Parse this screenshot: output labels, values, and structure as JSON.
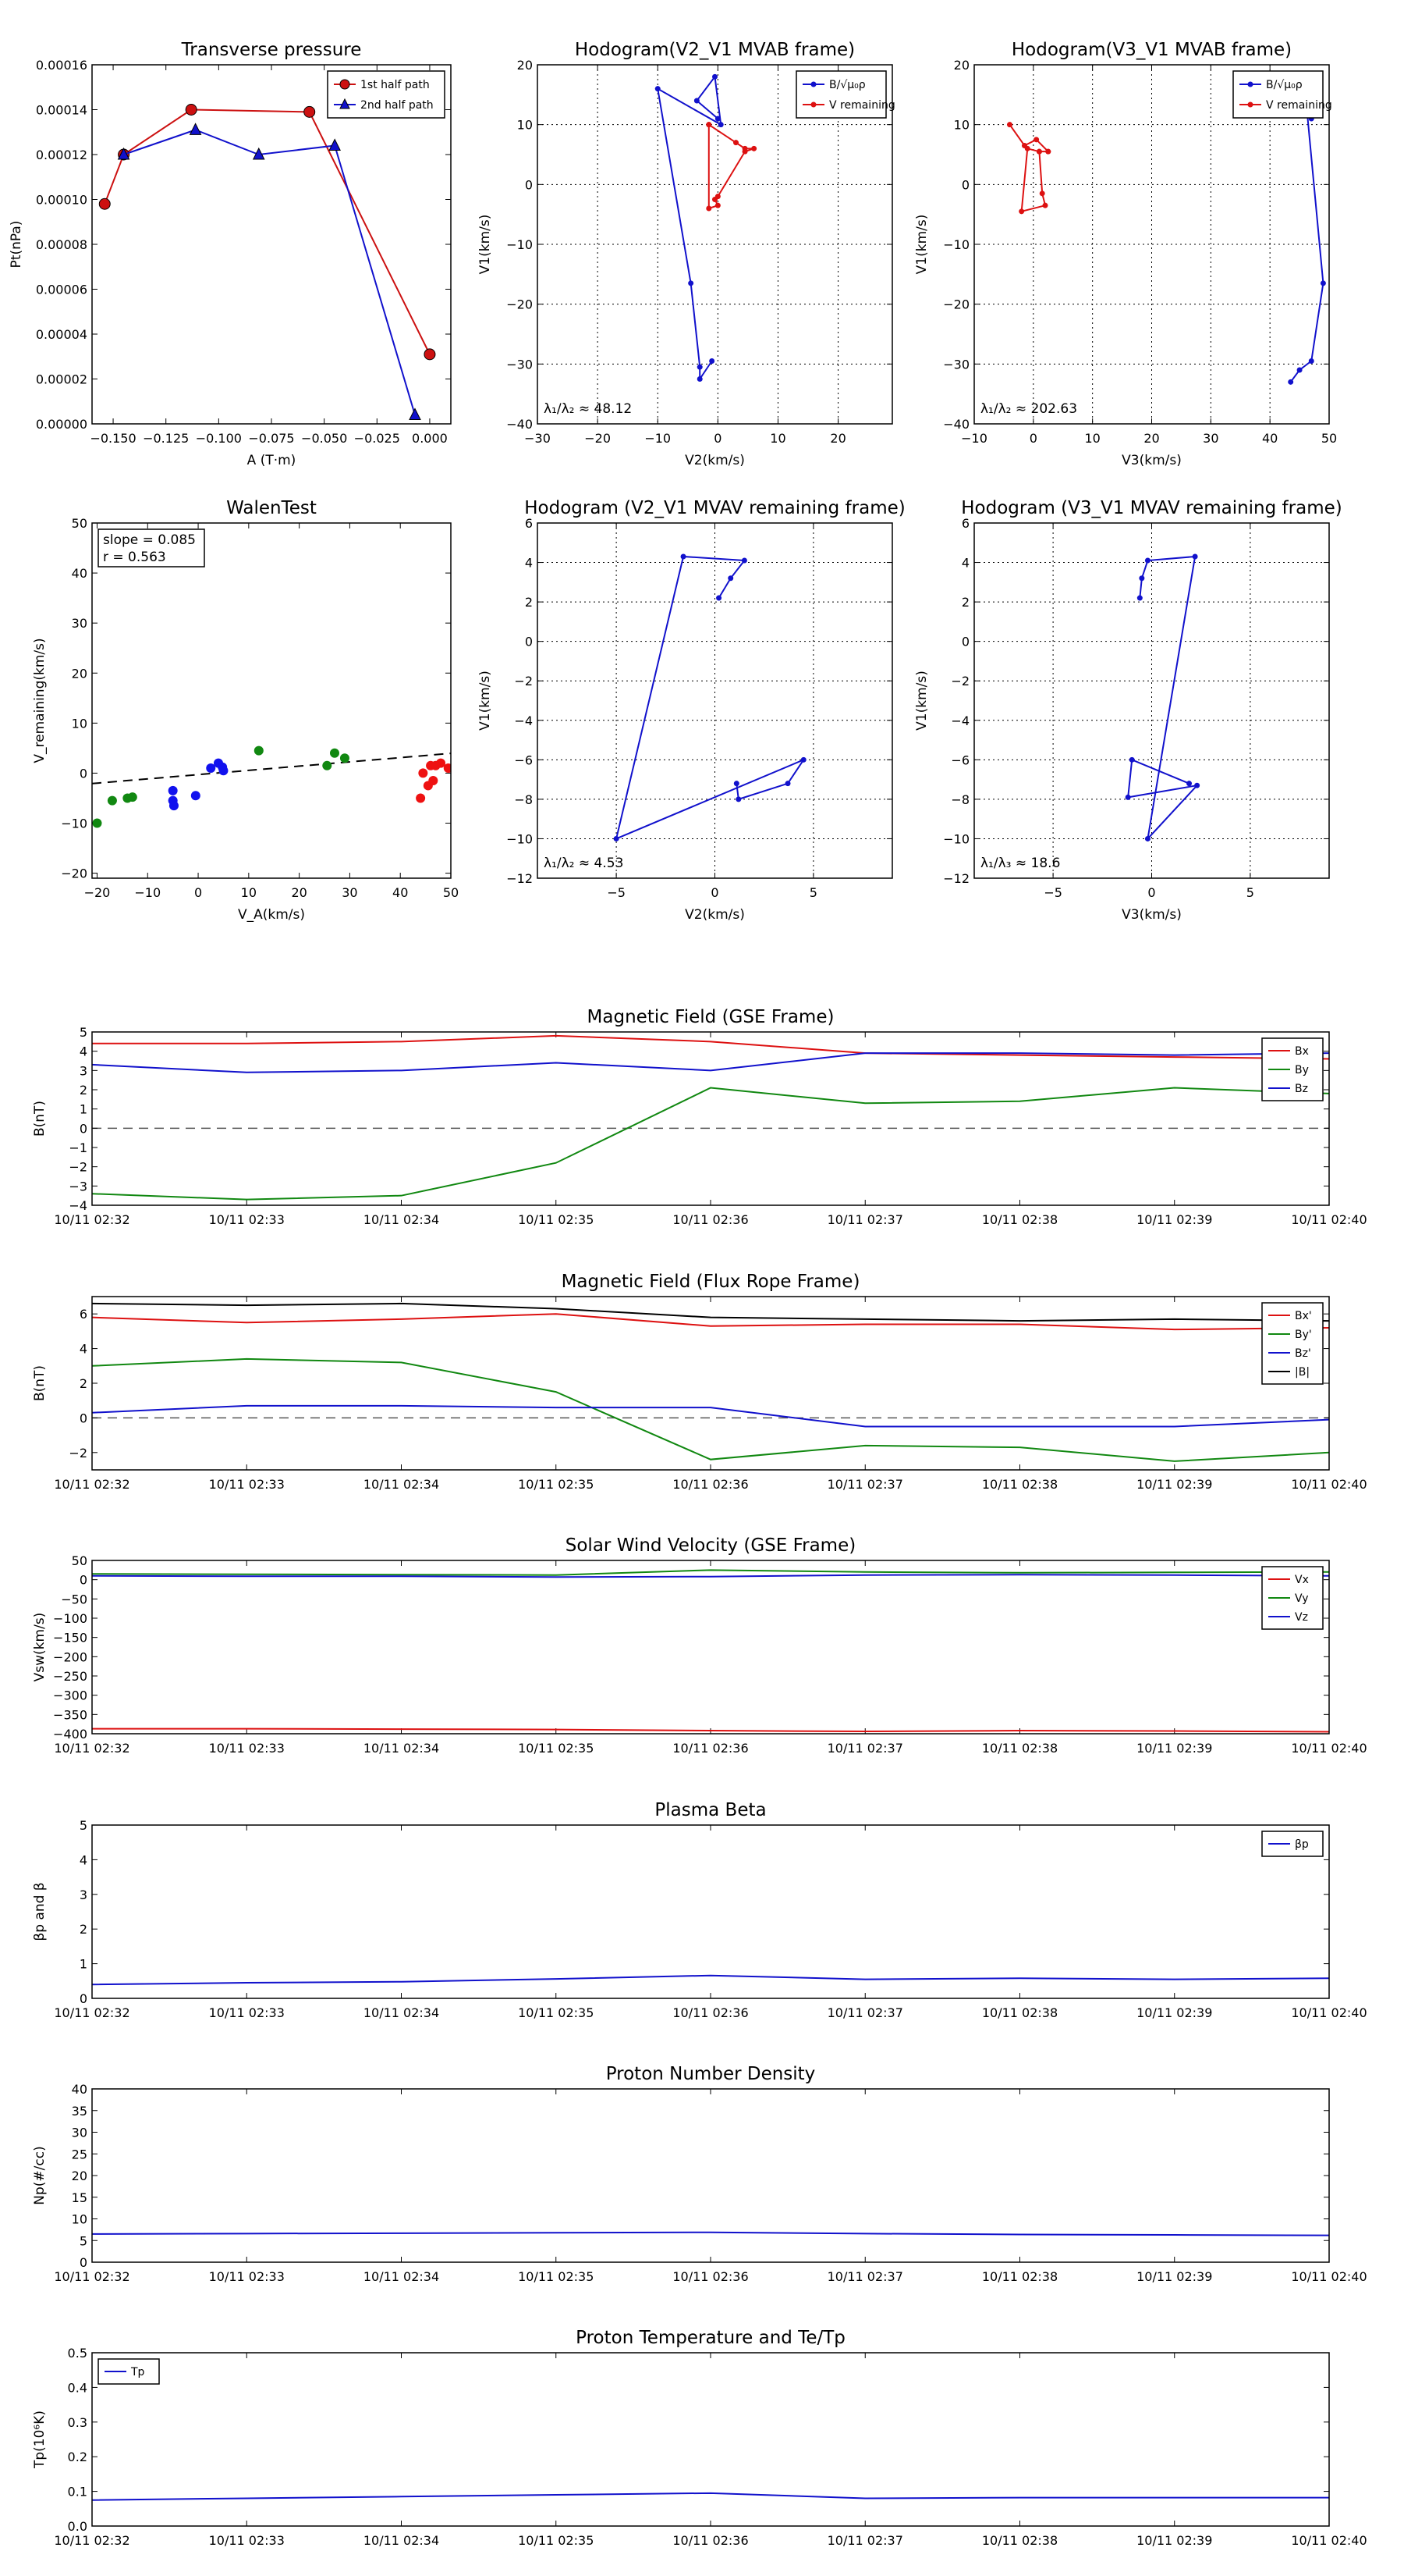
{
  "chart_data": [
    {
      "id": "tp",
      "type": "line",
      "title": "Transverse pressure",
      "xlabel": "A (T·m)",
      "ylabel": "Pt(nPa)",
      "xlim": [
        -0.16,
        0.01
      ],
      "ylim": [
        0,
        0.00016
      ],
      "xticks": [
        -0.15,
        -0.125,
        -0.1,
        -0.075,
        -0.05,
        -0.025,
        0.0
      ],
      "xtick_labels": [
        "−0.150",
        "−0.125",
        "−0.100",
        "−0.075",
        "−0.050",
        "−0.025",
        "0.000"
      ],
      "yticks": [
        0,
        2e-05,
        4e-05,
        6e-05,
        8e-05,
        0.0001,
        0.00012,
        0.00014,
        0.00016
      ],
      "ytick_labels": [
        "0.00000",
        "0.00002",
        "0.00004",
        "0.00006",
        "0.00008",
        "0.00010",
        "0.00012",
        "0.00014",
        "0.00016"
      ],
      "grid": false,
      "legend": "top-right",
      "series": [
        {
          "name": "1st half path",
          "color": "#cc1111",
          "marker": "circle",
          "x": [
            -0.154,
            -0.145,
            -0.113,
            -0.057,
            0.0
          ],
          "y": [
            9.8e-05,
            0.00012,
            0.00014,
            0.000139,
            3.1e-05
          ]
        },
        {
          "name": "2nd half path",
          "color": "#1111cc",
          "marker": "triangle",
          "x": [
            -0.145,
            -0.111,
            -0.081,
            -0.045,
            -0.007
          ],
          "y": [
            0.00012,
            0.000131,
            0.00012,
            0.000124,
            4e-06
          ]
        }
      ]
    },
    {
      "id": "h1",
      "type": "line",
      "title": "Hodogram(V2_V1 MVAB frame)",
      "xlabel": "V2(km/s)",
      "ylabel": "V1(km/s)",
      "xlim": [
        -30,
        29
      ],
      "ylim": [
        -40,
        20
      ],
      "xticks": [
        -30,
        -20,
        -10,
        0,
        10,
        20
      ],
      "yticks": [
        -40,
        -30,
        -20,
        -10,
        0,
        10,
        20
      ],
      "grid": true,
      "legend": "top-right",
      "annotation": "λ₁/λ₂ ≈ 48.12",
      "series": [
        {
          "name": "B/√μ₀ρ",
          "color": "#1111cc",
          "x": [
            0.0,
            -3.5,
            -0.5,
            0.5,
            -10.0,
            -4.5,
            -3.0,
            -3.0,
            -1.0
          ],
          "y": [
            11.0,
            14.0,
            18.0,
            10.0,
            16.0,
            -16.5,
            -30.5,
            -32.5,
            -29.5
          ]
        },
        {
          "name": "V remaining",
          "color": "#dd1111",
          "x": [
            -1.5,
            3.0,
            4.5,
            6.0,
            4.5,
            0.0,
            -0.5,
            0.0,
            -1.5,
            -1.5
          ],
          "y": [
            10.0,
            7.0,
            6.0,
            6.0,
            5.5,
            -2.0,
            -2.5,
            -3.5,
            -4.0,
            10.0
          ]
        }
      ]
    },
    {
      "id": "h2",
      "type": "line",
      "title": "Hodogram(V3_V1 MVAB frame)",
      "xlabel": "V3(km/s)",
      "ylabel": "V1(km/s)",
      "xlim": [
        -10,
        50
      ],
      "ylim": [
        -40,
        20
      ],
      "xticks": [
        -10,
        0,
        10,
        20,
        30,
        40,
        50
      ],
      "yticks": [
        -40,
        -30,
        -20,
        -10,
        0,
        10,
        20
      ],
      "grid": true,
      "legend": "top-right",
      "annotation": "λ₁/λ₂ ≈ 202.63",
      "series": [
        {
          "name": "B/√μ₀ρ",
          "color": "#1111cc",
          "x": [
            47.0,
            46.0,
            49.0,
            47.0,
            45.0,
            43.5
          ],
          "y": [
            11.0,
            15.0,
            -16.5,
            -29.5,
            -31.0,
            -33.0
          ]
        },
        {
          "name": "V remaining",
          "color": "#dd1111",
          "x": [
            -4.0,
            -1.5,
            0.5,
            2.5,
            1.0,
            1.5,
            2.0,
            -2.0,
            -1.0,
            1.0,
            2.5
          ],
          "y": [
            10.0,
            6.5,
            7.5,
            5.5,
            5.5,
            -1.5,
            -3.5,
            -4.5,
            6.0,
            5.5,
            5.5
          ]
        }
      ]
    },
    {
      "id": "walen",
      "type": "scatter",
      "title": "WalenTest",
      "xlabel": "V_A(km/s)",
      "ylabel": "V_remaining(km/s)",
      "xlim": [
        -21,
        50
      ],
      "ylim": [
        -21,
        50
      ],
      "xticks": [
        -20,
        -10,
        0,
        10,
        20,
        30,
        40,
        50
      ],
      "yticks": [
        -20,
        -10,
        0,
        10,
        20,
        30,
        40,
        50
      ],
      "grid": false,
      "legend": "top-left",
      "stats": {
        "slope": "slope = 0.085",
        "r": "r = 0.563"
      },
      "fit": {
        "slope": 0.085,
        "intercept": -0.3
      },
      "series": [
        {
          "color": "#118811",
          "x": [
            -20.0,
            -17.0,
            -14.0,
            -13.0,
            12.0,
            25.5,
            27.0,
            29.0
          ],
          "y": [
            -10.0,
            -5.5,
            -5.0,
            -4.8,
            4.5,
            1.5,
            4.0,
            3.0
          ]
        },
        {
          "color": "#1111ee",
          "x": [
            -5.0,
            -5.0,
            -4.8,
            -0.5,
            2.5,
            4.0,
            5.0,
            4.8
          ],
          "y": [
            -3.5,
            -5.5,
            -6.5,
            -4.5,
            1.0,
            2.0,
            0.5,
            1.2
          ]
        },
        {
          "color": "#ee1111",
          "x": [
            44.0,
            44.5,
            45.5,
            46.5,
            46.0,
            48.0,
            49.5,
            47.0
          ],
          "y": [
            -5.0,
            0.0,
            -2.5,
            -1.5,
            1.5,
            2.0,
            1.0,
            1.5
          ]
        }
      ]
    },
    {
      "id": "h3",
      "type": "line",
      "title": "Hodogram (V2_V1 MVAV remaining frame)",
      "xlabel": "V2(km/s)",
      "ylabel": "V1(km/s)",
      "xlim": [
        -9,
        9
      ],
      "ylim": [
        -12,
        6
      ],
      "xticks": [
        -5,
        0,
        5
      ],
      "yticks": [
        -12,
        -10,
        -8,
        -6,
        -4,
        -2,
        0,
        2,
        4,
        6
      ],
      "grid": true,
      "annotation": "λ₁/λ₂ ≈ 4.53",
      "series": [
        {
          "color": "#1111cc",
          "x": [
            1.1,
            1.2,
            3.7,
            4.5,
            -5.0,
            -1.6,
            1.5,
            0.8,
            0.2
          ],
          "y": [
            -7.2,
            -8.0,
            -7.2,
            -6.0,
            -10.0,
            4.3,
            4.1,
            3.2,
            2.2
          ]
        }
      ]
    },
    {
      "id": "h4",
      "type": "line",
      "title": "Hodogram (V3_V1 MVAV remaining frame)",
      "xlabel": "V3(km/s)",
      "ylabel": "V1(km/s)",
      "xlim": [
        -9,
        9
      ],
      "ylim": [
        -12,
        6
      ],
      "xticks": [
        -5,
        0,
        5
      ],
      "yticks": [
        -12,
        -10,
        -8,
        -6,
        -4,
        -2,
        0,
        2,
        4,
        6
      ],
      "grid": true,
      "annotation": "λ₁/λ₃ ≈ 18.6",
      "series": [
        {
          "color": "#1111cc",
          "x": [
            -0.6,
            -0.5,
            -0.2,
            2.2,
            -0.2,
            2.3,
            -1.2,
            -1.0,
            1.9
          ],
          "y": [
            2.2,
            3.2,
            4.1,
            4.3,
            -10.0,
            -7.3,
            -7.9,
            -6.0,
            -7.2
          ]
        }
      ]
    },
    {
      "id": "bgse",
      "type": "line",
      "title": "Magnetic Field (GSE Frame)",
      "xlabel": "",
      "ylabel": "B(nT)",
      "ylim": [
        -4,
        5
      ],
      "yticks": [
        -4,
        -3,
        -2,
        -1,
        0,
        1,
        2,
        3,
        4,
        5
      ],
      "categories": [
        "10/11 02:32",
        "10/11 02:33",
        "10/11 02:34",
        "10/11 02:35",
        "10/11 02:36",
        "10/11 02:37",
        "10/11 02:38",
        "10/11 02:39",
        "10/11 02:40"
      ],
      "zero_line": true,
      "legend": "top-right",
      "series": [
        {
          "name": "Bx",
          "color": "#dd1111",
          "values": [
            4.4,
            4.4,
            4.5,
            4.8,
            4.5,
            3.9,
            3.8,
            3.7,
            3.6
          ]
        },
        {
          "name": "By",
          "color": "#118811",
          "values": [
            -3.4,
            -3.7,
            -3.5,
            -1.8,
            2.1,
            1.3,
            1.4,
            2.1,
            1.8
          ]
        },
        {
          "name": "Bz",
          "color": "#1111cc",
          "values": [
            3.3,
            2.9,
            3.0,
            3.4,
            3.0,
            3.9,
            3.9,
            3.8,
            3.9
          ]
        }
      ]
    },
    {
      "id": "bfr",
      "type": "line",
      "title": "Magnetic Field (Flux Rope Frame)",
      "xlabel": "",
      "ylabel": "B(nT)",
      "ylim": [
        -3,
        7
      ],
      "yticks": [
        -2,
        0,
        2,
        4,
        6
      ],
      "categories": [
        "10/11 02:32",
        "10/11 02:33",
        "10/11 02:34",
        "10/11 02:35",
        "10/11 02:36",
        "10/11 02:37",
        "10/11 02:38",
        "10/11 02:39",
        "10/11 02:40"
      ],
      "zero_line": true,
      "legend": "top-right",
      "series": [
        {
          "name": "Bx'",
          "color": "#dd1111",
          "values": [
            5.8,
            5.5,
            5.7,
            6.0,
            5.3,
            5.4,
            5.4,
            5.1,
            5.2
          ]
        },
        {
          "name": "By'",
          "color": "#118811",
          "values": [
            3.0,
            3.4,
            3.2,
            1.5,
            -2.4,
            -1.6,
            -1.7,
            -2.5,
            -2.0
          ]
        },
        {
          "name": "Bz'",
          "color": "#1111cc",
          "values": [
            0.3,
            0.7,
            0.7,
            0.6,
            0.6,
            -0.5,
            -0.5,
            -0.5,
            -0.1
          ]
        },
        {
          "name": "|B|",
          "color": "#000000",
          "values": [
            6.6,
            6.5,
            6.6,
            6.3,
            5.8,
            5.7,
            5.6,
            5.7,
            5.6
          ]
        }
      ]
    },
    {
      "id": "vsw",
      "type": "line",
      "title": "Solar Wind Velocity (GSE Frame)",
      "xlabel": "",
      "ylabel": "Vsw(km/s)",
      "ylim": [
        -400,
        50
      ],
      "yticks": [
        -400,
        -350,
        -300,
        -250,
        -200,
        -150,
        -100,
        -50,
        0,
        50
      ],
      "categories": [
        "10/11 02:32",
        "10/11 02:33",
        "10/11 02:34",
        "10/11 02:35",
        "10/11 02:36",
        "10/11 02:37",
        "10/11 02:38",
        "10/11 02:39",
        "10/11 02:40"
      ],
      "legend": "top-right",
      "series": [
        {
          "name": "Vx",
          "color": "#dd1111",
          "values": [
            -387,
            -387,
            -388,
            -389,
            -392,
            -394,
            -392,
            -393,
            -395
          ]
        },
        {
          "name": "Vy",
          "color": "#118811",
          "values": [
            15,
            14,
            13,
            12,
            25,
            20,
            18,
            19,
            20
          ]
        },
        {
          "name": "Vz",
          "color": "#1111cc",
          "values": [
            10,
            9,
            9,
            7,
            8,
            12,
            13,
            12,
            10
          ]
        }
      ]
    },
    {
      "id": "beta",
      "type": "line",
      "title": "Plasma Beta",
      "xlabel": "",
      "ylabel": "βp and β",
      "ylim": [
        0,
        5
      ],
      "yticks": [
        0,
        1,
        2,
        3,
        4,
        5
      ],
      "categories": [
        "10/11 02:32",
        "10/11 02:33",
        "10/11 02:34",
        "10/11 02:35",
        "10/11 02:36",
        "10/11 02:37",
        "10/11 02:38",
        "10/11 02:39",
        "10/11 02:40"
      ],
      "legend": "top-right",
      "series": [
        {
          "name": "βp",
          "color": "#1111cc",
          "values": [
            0.4,
            0.45,
            0.48,
            0.56,
            0.66,
            0.55,
            0.58,
            0.55,
            0.58
          ]
        }
      ]
    },
    {
      "id": "np",
      "type": "line",
      "title": "Proton Number Density",
      "xlabel": "",
      "ylabel": "Np(#/cc)",
      "ylim": [
        0,
        40
      ],
      "yticks": [
        0,
        5,
        10,
        15,
        20,
        25,
        30,
        35,
        40
      ],
      "categories": [
        "10/11 02:32",
        "10/11 02:33",
        "10/11 02:34",
        "10/11 02:35",
        "10/11 02:36",
        "10/11 02:37",
        "10/11 02:38",
        "10/11 02:39",
        "10/11 02:40"
      ],
      "series": [
        {
          "color": "#1111cc",
          "values": [
            6.5,
            6.6,
            6.7,
            6.8,
            6.9,
            6.6,
            6.4,
            6.3,
            6.2
          ]
        }
      ]
    },
    {
      "id": "tpt",
      "type": "line",
      "title": "Proton Temperature and Te/Tp",
      "xlabel": "",
      "ylabel": "Tp(10⁶K)",
      "ylim": [
        0,
        0.5
      ],
      "yticks": [
        0,
        0.1,
        0.2,
        0.3,
        0.4,
        0.5
      ],
      "ytick_labels": [
        "0.0",
        "0.1",
        "0.2",
        "0.3",
        "0.4",
        "0.5"
      ],
      "categories": [
        "10/11 02:32",
        "10/11 02:33",
        "10/11 02:34",
        "10/11 02:35",
        "10/11 02:36",
        "10/11 02:37",
        "10/11 02:38",
        "10/11 02:39",
        "10/11 02:40"
      ],
      "legend": "top-left",
      "series": [
        {
          "name": "Tp",
          "color": "#1111cc",
          "values": [
            0.075,
            0.08,
            0.085,
            0.09,
            0.095,
            0.08,
            0.082,
            0.082,
            0.082
          ]
        }
      ]
    }
  ]
}
